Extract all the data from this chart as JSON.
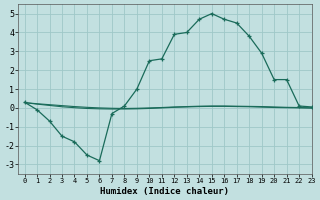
{
  "x": [
    0,
    1,
    2,
    3,
    4,
    5,
    6,
    7,
    8,
    9,
    10,
    11,
    12,
    13,
    14,
    15,
    16,
    17,
    18,
    19,
    20,
    21,
    22,
    23
  ],
  "y_main": [
    0.3,
    -0.1,
    -0.7,
    -1.5,
    -1.8,
    -2.5,
    -2.8,
    -0.3,
    0.1,
    1.0,
    2.5,
    2.6,
    3.9,
    4.0,
    4.7,
    5.0,
    4.7,
    4.5,
    3.8,
    2.9,
    1.5,
    1.5,
    0.1,
    0.05
  ],
  "y_line1": [
    0.28,
    0.22,
    0.17,
    0.12,
    0.07,
    0.03,
    0.0,
    -0.02,
    -0.03,
    -0.02,
    0.0,
    0.02,
    0.05,
    0.07,
    0.09,
    0.1,
    0.1,
    0.09,
    0.08,
    0.07,
    0.05,
    0.03,
    0.02,
    0.0
  ],
  "y_line2": [
    0.28,
    0.2,
    0.13,
    0.06,
    0.01,
    -0.03,
    -0.05,
    -0.06,
    -0.06,
    -0.05,
    -0.03,
    0.0,
    0.03,
    0.05,
    0.07,
    0.08,
    0.08,
    0.07,
    0.06,
    0.04,
    0.02,
    0.01,
    0.0,
    -0.01
  ],
  "color_main": "#1a6b5a",
  "color_line1": "#1a6b5a",
  "color_line2": "#1a6b5a",
  "bg_color": "#c2e0e0",
  "grid_color": "#9fc8c8",
  "xlabel": "Humidex (Indice chaleur)",
  "ylim": [
    -3.5,
    5.5
  ],
  "xlim": [
    -0.5,
    23
  ],
  "yticks": [
    -3,
    -2,
    -1,
    0,
    1,
    2,
    3,
    4,
    5
  ],
  "xticks": [
    0,
    1,
    2,
    3,
    4,
    5,
    6,
    7,
    8,
    9,
    10,
    11,
    12,
    13,
    14,
    15,
    16,
    17,
    18,
    19,
    20,
    21,
    22,
    23
  ]
}
